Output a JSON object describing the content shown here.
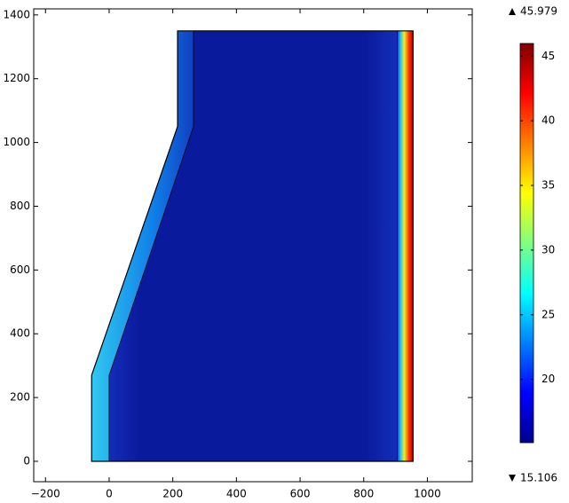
{
  "chart_data": {
    "type": "surface",
    "colormap": "jet",
    "xlim": [
      -237,
      1141
    ],
    "ylim": [
      -64,
      1419
    ],
    "xticks": [
      {
        "value": -200,
        "label": "−200"
      },
      0,
      200,
      400,
      600,
      800,
      1000
    ],
    "yticks": [
      0,
      200,
      400,
      600,
      800,
      1000,
      1200,
      1400
    ],
    "color_range": {
      "min": 15.106,
      "max": 45.979
    },
    "colorbar_ticks": [
      20,
      25,
      30,
      35,
      40,
      45
    ],
    "domain": {
      "x": [
        -55,
        -55,
        215,
        215,
        955,
        955
      ],
      "y": [
        0,
        270,
        1050,
        1350,
        1350,
        0
      ]
    },
    "inner_boundaries": [
      {
        "x": [
          0,
          0,
          265,
          265
        ],
        "y": [
          0,
          270,
          1050,
          1350
        ]
      },
      {
        "x": [
          905,
          905
        ],
        "y": [
          0,
          1350
        ]
      }
    ]
  }
}
